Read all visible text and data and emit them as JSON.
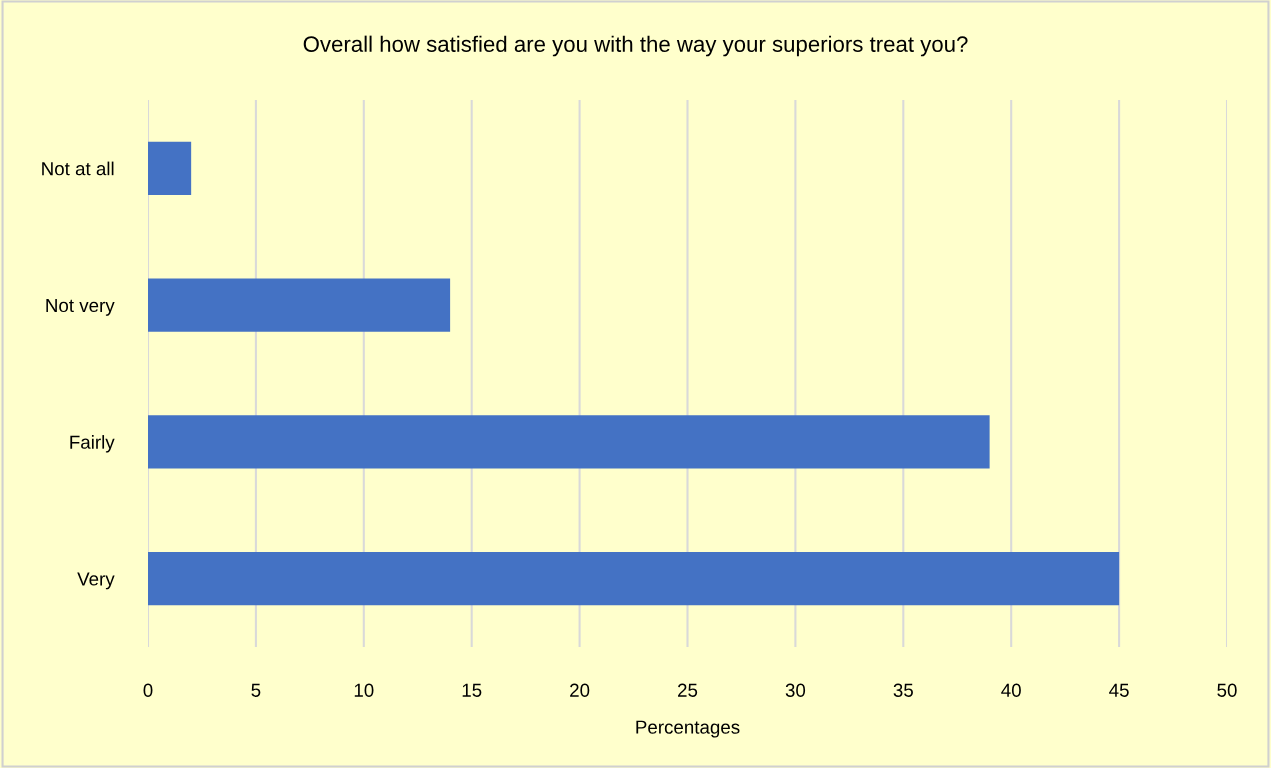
{
  "chart_data": {
    "type": "bar",
    "orientation": "horizontal",
    "title": "Overall how satisfied are you with the way your superiors treat you?",
    "xlabel": "Percentages",
    "categories": [
      "Not at all",
      "Not very",
      "Fairly",
      "Very"
    ],
    "values": [
      2,
      14,
      39,
      45
    ],
    "color": "#4472c4",
    "xlim": [
      0,
      50
    ],
    "xticks": [
      0,
      5,
      10,
      15,
      20,
      25,
      30,
      35,
      40,
      45,
      50
    ],
    "grid": "x"
  }
}
